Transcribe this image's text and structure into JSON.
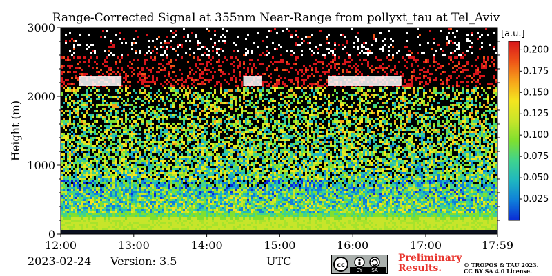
{
  "title": "Range-Corrected Signal at 355nm Near-Range from pollyxt_tau at Tel_Aviv",
  "footer": {
    "date": "2023-02-24",
    "version": "Version: 3.5",
    "preliminary_line1": "Preliminary",
    "preliminary_line2": "Results.",
    "copyright_line1": "© TROPOS & TAU 2023.",
    "copyright_line2": "CC BY SA 4.0 License.",
    "license_badge": [
      "cc",
      "BY",
      "SA"
    ]
  },
  "colors": {
    "colormap": [
      "#0a2bd6",
      "#0f7fd9",
      "#1fb7c0",
      "#3fd38e",
      "#7fe02f",
      "#c7e52a",
      "#f4e51f",
      "#f6a31a",
      "#ee5418",
      "#d8161b"
    ],
    "preliminary": "#e8342d"
  },
  "chart_data": {
    "type": "heatmap",
    "title": "Range-Corrected Signal at 355nm Near-Range from pollyxt_tau at Tel_Aviv",
    "xlabel": "UTC",
    "ylabel": "Height (m)",
    "x_ticks": [
      "12:00",
      "13:00",
      "14:00",
      "15:00",
      "16:00",
      "17:00",
      "17:59"
    ],
    "xlim": [
      "12:00",
      "17:59"
    ],
    "y_ticks": [
      0,
      1000,
      2000,
      3000
    ],
    "ylim": [
      0,
      3000
    ],
    "colorbar": {
      "label": "[a.u.]",
      "ticks": [
        0.025,
        0.05,
        0.075,
        0.1,
        0.125,
        0.15,
        0.175,
        0.2
      ],
      "tick_labels": [
        "0.025",
        "0.050",
        "0.075",
        "0.100",
        "0.125",
        "0.150",
        "0.175",
        "0.200"
      ],
      "range": [
        0.0,
        0.21
      ],
      "colormap": "jet-like"
    },
    "features": {
      "surface_layer_max_height_m": 60,
      "cloud_layer_height_m": [
        2150,
        2300
      ],
      "cloud_time_ranges": [
        [
          "12:15",
          "12:50"
        ],
        [
          "14:30",
          "14:45"
        ],
        [
          "15:40",
          "16:40"
        ]
      ],
      "noise_top_height_m": 2600
    }
  }
}
